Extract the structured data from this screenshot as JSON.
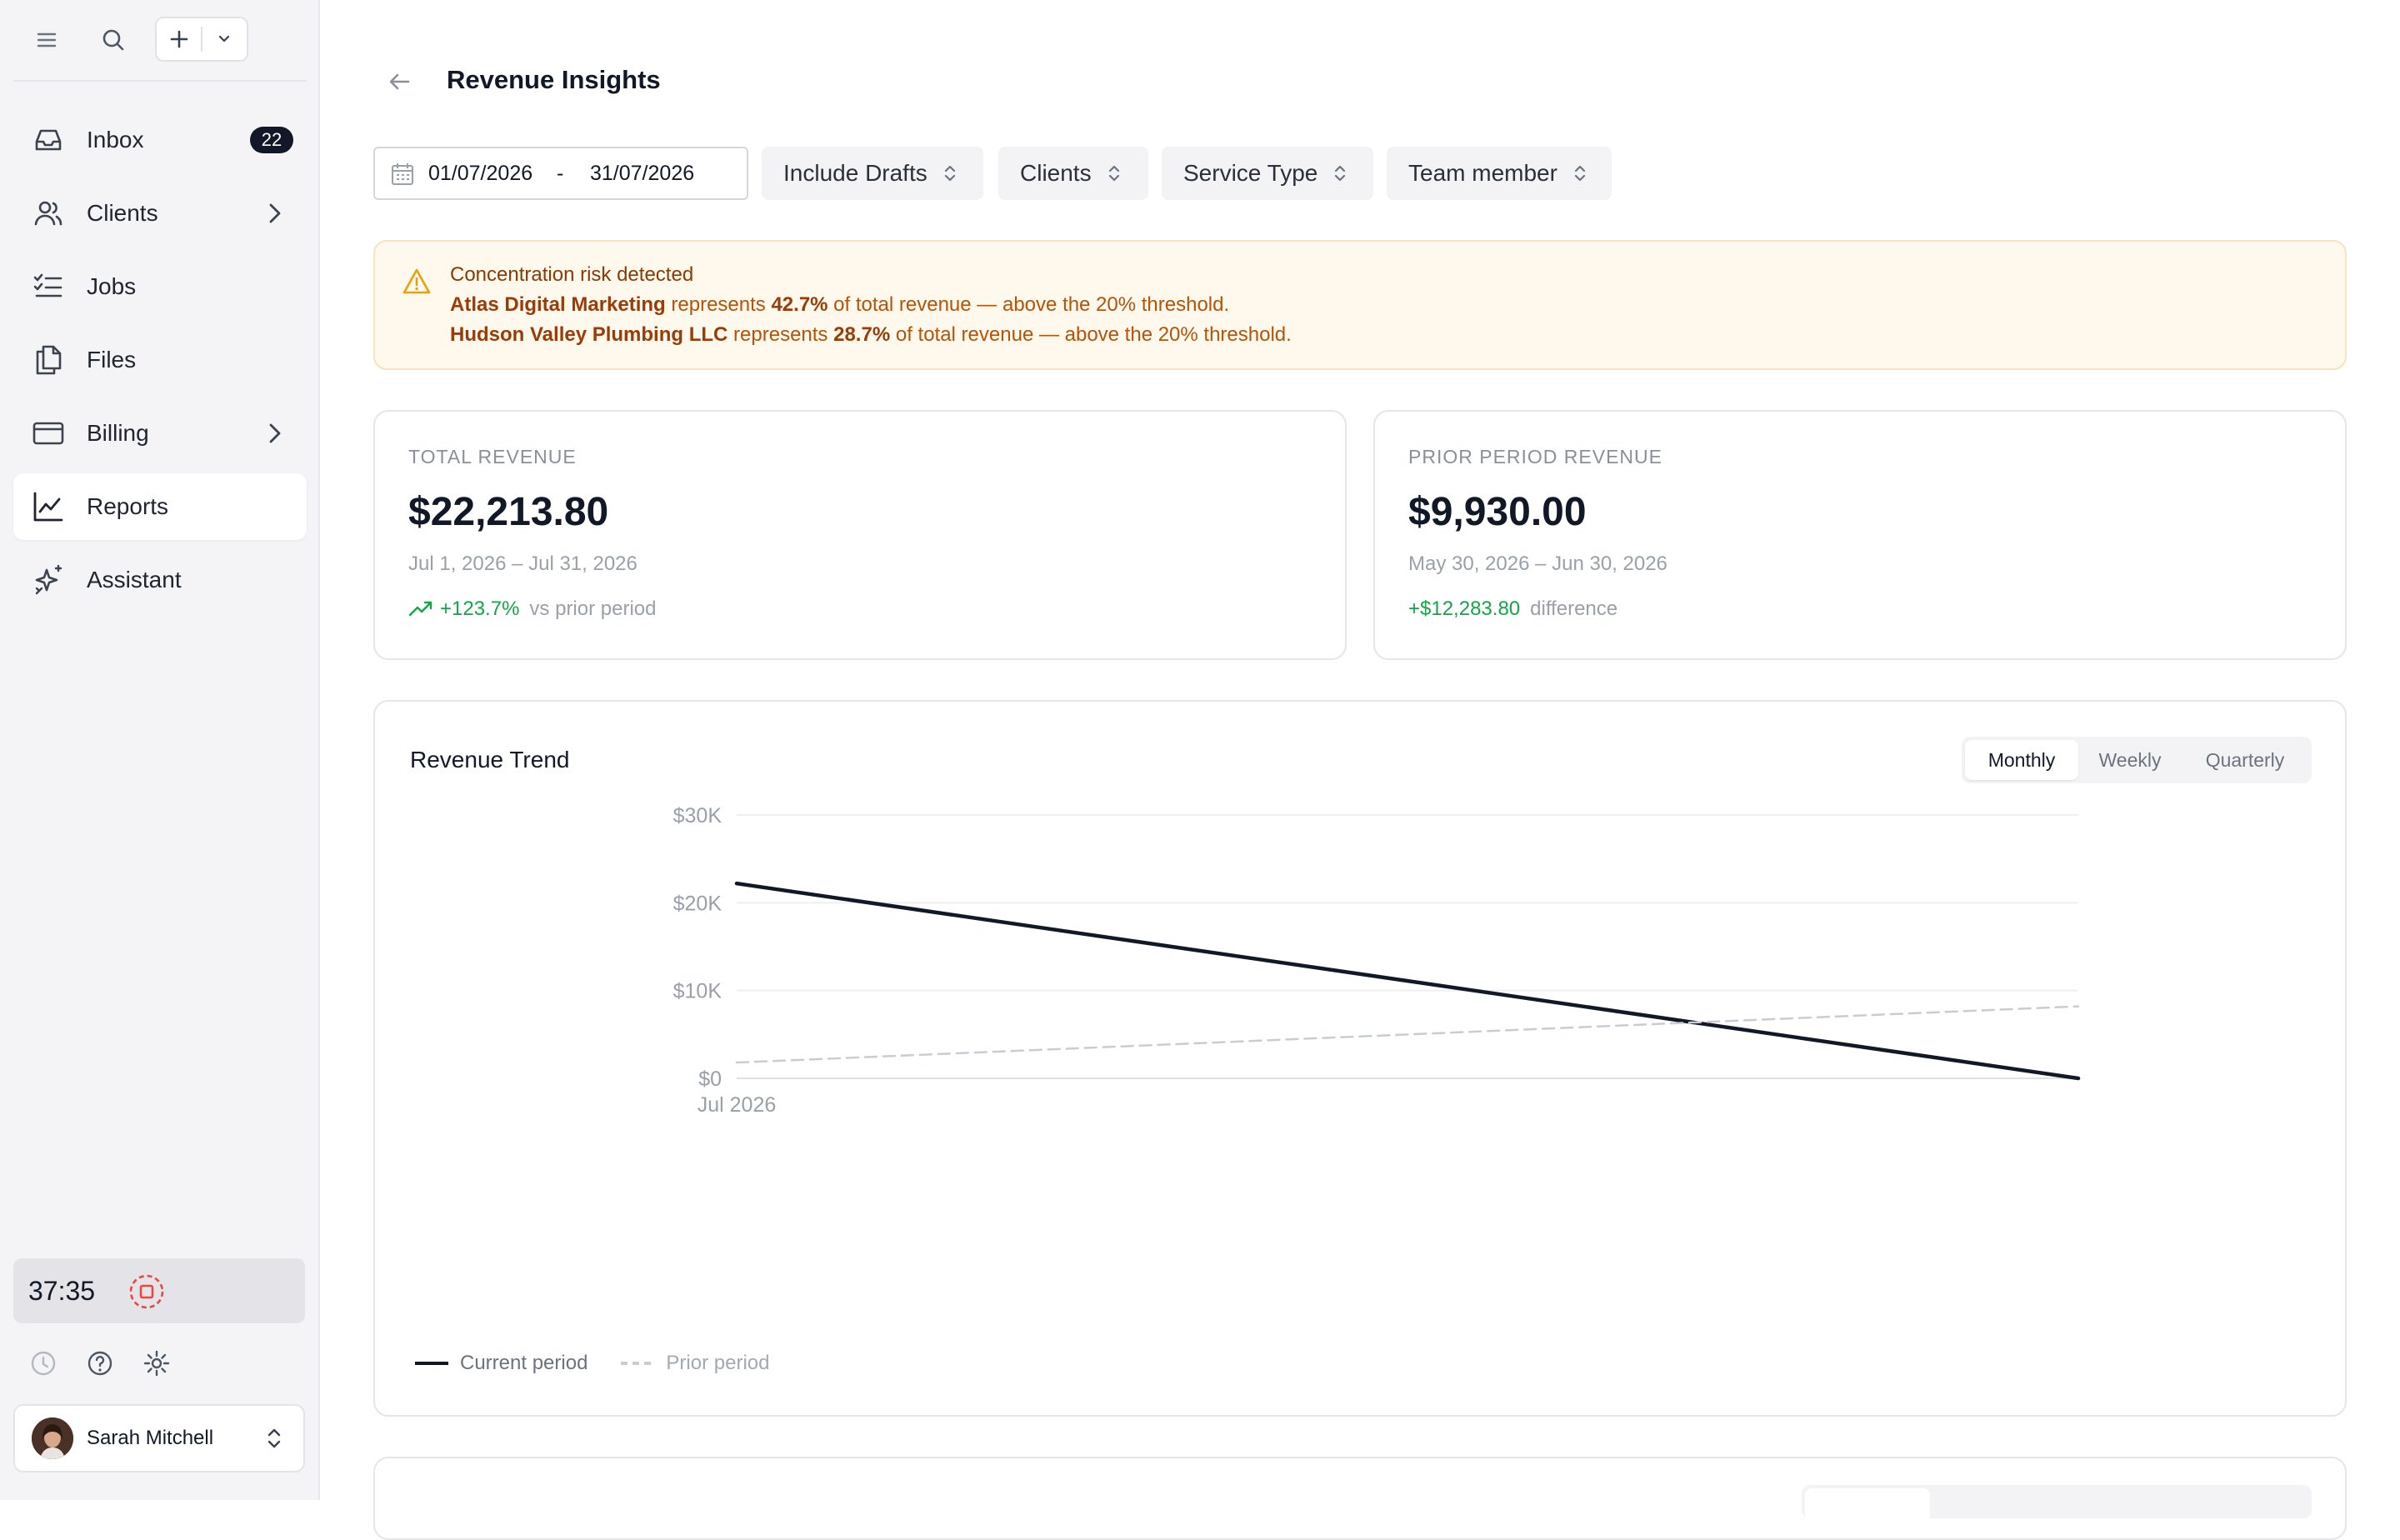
{
  "sidebar": {
    "new_button_plus": "+",
    "nav": [
      {
        "label": "Inbox",
        "badge": "22"
      },
      {
        "label": "Clients"
      },
      {
        "label": "Jobs"
      },
      {
        "label": "Files"
      },
      {
        "label": "Billing"
      },
      {
        "label": "Reports"
      },
      {
        "label": "Assistant"
      }
    ],
    "timer": "37:35",
    "user_name": "Sarah Mitchell"
  },
  "page": {
    "title": "Revenue Insights"
  },
  "filters": {
    "start_date": "01/07/2026",
    "range_separator": "-",
    "end_date": "31/07/2026",
    "include_drafts": "Include Drafts",
    "clients": "Clients",
    "service_type": "Service Type",
    "team_member": "Team member"
  },
  "alert": {
    "title": "Concentration risk detected",
    "lines": [
      {
        "client": "Atlas Digital Marketing",
        "pre": " represents ",
        "pct": "42.7%",
        "post": " of total revenue — above the 20% threshold."
      },
      {
        "client": "Hudson Valley Plumbing LLC",
        "pre": " represents ",
        "pct": "28.7%",
        "post": " of total revenue — above the 20% threshold."
      }
    ]
  },
  "total_revenue": {
    "label": "TOTAL REVENUE",
    "value": "$22,213.80",
    "range": "Jul 1, 2026 – Jul 31, 2026",
    "delta": "+123.7%",
    "delta_note": "vs prior period"
  },
  "prior_revenue": {
    "label": "PRIOR PERIOD REVENUE",
    "value": "$9,930.00",
    "range": "May 30, 2026 – Jun 30, 2026",
    "delta": "+$12,283.80",
    "delta_note": "difference"
  },
  "trend": {
    "title": "Revenue Trend",
    "tabs": [
      "Monthly",
      "Weekly",
      "Quarterly"
    ],
    "selected_tab": "Monthly",
    "legend_current": "Current period",
    "legend_prior": "Prior period"
  },
  "colors": {
    "current": "#111827",
    "prior": "#c9ccd4",
    "positive": "#16a34a",
    "alert_bg": "#fff8ec"
  },
  "chart_data": {
    "type": "line",
    "x": [
      "Jul 2026",
      ""
    ],
    "x_tick_labels": [
      "Jul 2026"
    ],
    "y_ticks": [
      0,
      10000,
      20000,
      30000
    ],
    "y_tick_labels": [
      "$0",
      "$10K",
      "$20K",
      "$30K"
    ],
    "ylim": [
      0,
      30000
    ],
    "grid": true,
    "legend": "bottom-left",
    "series": [
      {
        "name": "Current period",
        "values": [
          22200,
          0
        ],
        "style": "solid"
      },
      {
        "name": "Prior period",
        "values": [
          1800,
          8200
        ],
        "style": "dashed"
      }
    ]
  }
}
